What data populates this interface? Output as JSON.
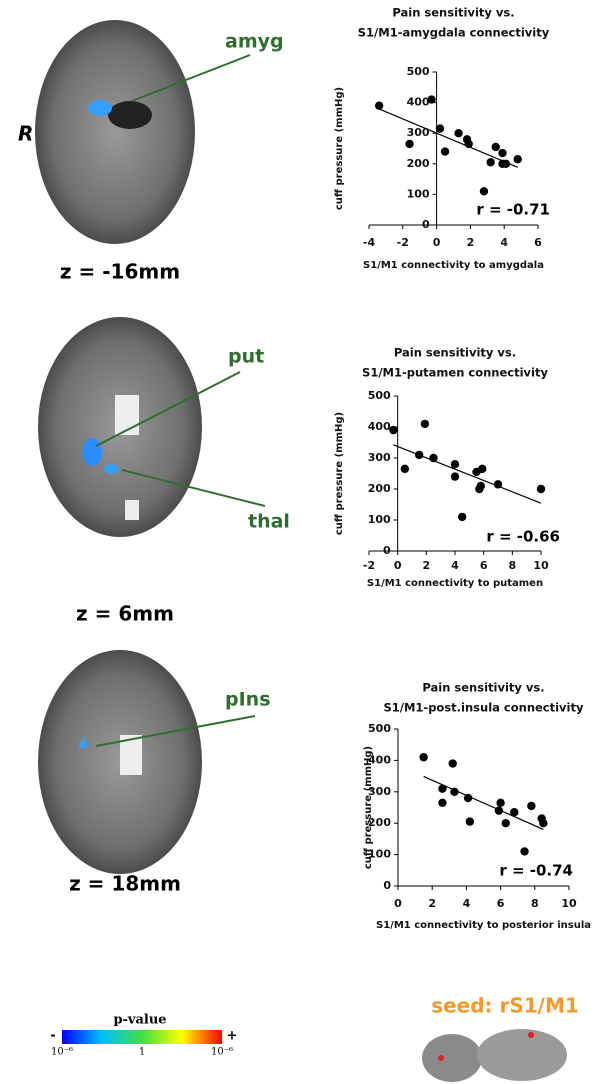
{
  "chart_data": [
    {
      "type": "scatter",
      "title": [
        "Pain sensitivity vs.",
        "S1/M1-amygdala connectivity"
      ],
      "xlabel": "S1/M1 connectivity to amygdala",
      "ylabel": "cuff pressure (mmHg)",
      "annotation": "r = -0.71",
      "color": "#000000",
      "fit_line": true,
      "x": [
        -3.4,
        -1.6,
        -0.3,
        0.2,
        0.5,
        1.3,
        1.8,
        1.9,
        2.8,
        3.2,
        3.5,
        3.9,
        3.9,
        4.1,
        4.8
      ],
      "y": [
        390,
        265,
        410,
        315,
        240,
        300,
        280,
        265,
        110,
        205,
        255,
        235,
        200,
        200,
        215
      ],
      "xlim": [
        -4,
        6
      ],
      "ylim": [
        0,
        500
      ],
      "xticks": [
        -4,
        -2,
        0,
        2,
        4,
        6
      ],
      "yticks": [
        0,
        100,
        200,
        300,
        400,
        500
      ]
    },
    {
      "type": "scatter",
      "title": [
        "Pain sensitivity vs.",
        "S1/M1-putamen connectivity"
      ],
      "xlabel": "S1/M1 connectivity to putamen",
      "ylabel": "cuff pressure (mmHg)",
      "annotation": "r = -0.66",
      "color": "#000000",
      "fit_line": true,
      "x": [
        -0.3,
        0.5,
        1.5,
        1.9,
        2.5,
        4,
        4,
        4.5,
        5.5,
        5.7,
        5.8,
        5.9,
        7,
        10
      ],
      "y": [
        390,
        265,
        310,
        410,
        300,
        280,
        240,
        110,
        255,
        200,
        210,
        265,
        215,
        200
      ],
      "xlim": [
        -2,
        10
      ],
      "ylim": [
        0,
        500
      ],
      "xticks": [
        -2,
        0,
        2,
        4,
        6,
        8,
        10
      ],
      "yticks": [
        0,
        100,
        200,
        300,
        400,
        500
      ]
    },
    {
      "type": "scatter",
      "title": [
        "Pain sensitivity vs.",
        "S1/M1-post.insula connectivity"
      ],
      "xlabel": "S1/M1 connectivity to posterior insula",
      "ylabel": "cuff pressure (mmHg)",
      "annotation": "r = -0.74",
      "color": "#000000",
      "fit_line": true,
      "x": [
        1.5,
        2.6,
        2.6,
        3.2,
        3.3,
        4.1,
        4.2,
        5.9,
        6.0,
        6.3,
        6.8,
        7.4,
        7.8,
        8.4,
        8.5
      ],
      "y": [
        410,
        310,
        265,
        390,
        300,
        280,
        205,
        240,
        265,
        200,
        235,
        110,
        255,
        215,
        200
      ],
      "xlim": [
        0,
        10
      ],
      "ylim": [
        0,
        500
      ],
      "xticks": [
        0,
        2,
        4,
        6,
        8,
        10
      ],
      "yticks": [
        0,
        100,
        200,
        300,
        400,
        500
      ]
    }
  ],
  "side_label": "R",
  "brains": [
    {
      "label": "amyg",
      "slice": "z = -16mm"
    },
    {
      "labels": [
        "put",
        "thal"
      ],
      "slice": "z = 6mm"
    },
    {
      "label": "pIns",
      "slice": "z = 18mm"
    }
  ],
  "colorbar": {
    "title": "p-value",
    "minus": "-",
    "plus": "+",
    "ticks": [
      "10⁻⁶",
      "1",
      "10⁻⁶"
    ]
  },
  "seed": "seed: rS1/M1"
}
